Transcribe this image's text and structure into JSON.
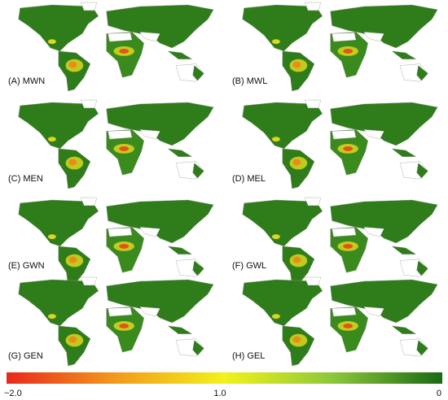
{
  "panels": [
    {
      "label": "(A) MWN"
    },
    {
      "label": "(B) MWL"
    },
    {
      "label": "(C) MEN"
    },
    {
      "label": "(D) MEL"
    },
    {
      "label": "(E) GWN"
    },
    {
      "label": "(F) GWL"
    },
    {
      "label": "(G) GEN"
    },
    {
      "label": "(H) GEL"
    }
  ],
  "colorbar": {
    "labels": [
      "~2.0",
      "1.0",
      "0"
    ]
  }
}
